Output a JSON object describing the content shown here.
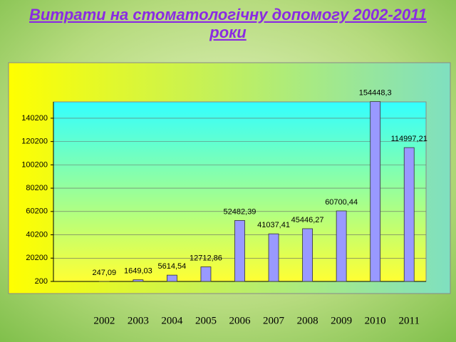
{
  "chart_data": {
    "type": "bar",
    "title": "Витрати на стоматологічну допомогу 2002-2011 роки",
    "categories": [
      "2002",
      "2003",
      "2004",
      "2005",
      "2006",
      "2007",
      "2008",
      "2009",
      "2010",
      "2011"
    ],
    "values": [
      247.09,
      1649.03,
      5614.54,
      12712.86,
      52482.39,
      41037.41,
      45446.27,
      60700.44,
      154448.3,
      114997.21
    ],
    "value_labels": [
      "247,09",
      "1649,03",
      "5614,54",
      "12712,86",
      "52482,39",
      "41037,41",
      "45446,27",
      "60700,44",
      "154448,3",
      "114997,21"
    ],
    "color": "#9999ff",
    "ylim": [
      200,
      154200
    ],
    "yticks": [
      200,
      20200,
      40200,
      60200,
      80200,
      100200,
      120200,
      140200
    ],
    "grid": true
  }
}
